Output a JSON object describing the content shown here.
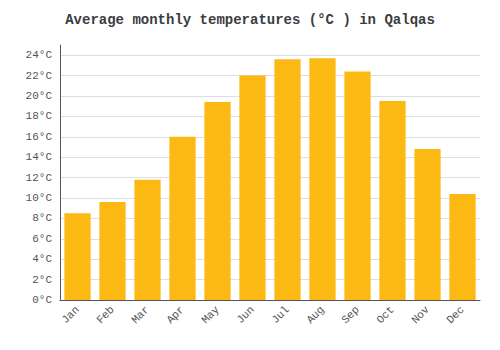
{
  "chart_data": {
    "type": "bar",
    "title": "Average monthly temperatures (°C ) in Qalqas",
    "categories": [
      "Jan",
      "Feb",
      "Mar",
      "Apr",
      "May",
      "Jun",
      "Jul",
      "Aug",
      "Sep",
      "Oct",
      "Nov",
      "Dec"
    ],
    "values": [
      8.5,
      9.6,
      11.8,
      16.0,
      19.4,
      22.0,
      23.6,
      23.7,
      22.4,
      19.5,
      14.8,
      10.4
    ],
    "color": "#FDB913",
    "ylim": [
      0,
      25
    ],
    "yticks": [
      {
        "value": 0,
        "label": "0°C"
      },
      {
        "value": 2,
        "label": "2°C"
      },
      {
        "value": 4,
        "label": "4°C"
      },
      {
        "value": 6,
        "label": "6°C"
      },
      {
        "value": 8,
        "label": "8°C"
      },
      {
        "value": 10,
        "label": "10°C"
      },
      {
        "value": 12,
        "label": "12°C"
      },
      {
        "value": 14,
        "label": "14°C"
      },
      {
        "value": 16,
        "label": "16°C"
      },
      {
        "value": 18,
        "label": "18°C"
      },
      {
        "value": 20,
        "label": "20°C"
      },
      {
        "value": 22,
        "label": "22°C"
      },
      {
        "value": 24,
        "label": "24°C"
      }
    ],
    "grid": true
  }
}
